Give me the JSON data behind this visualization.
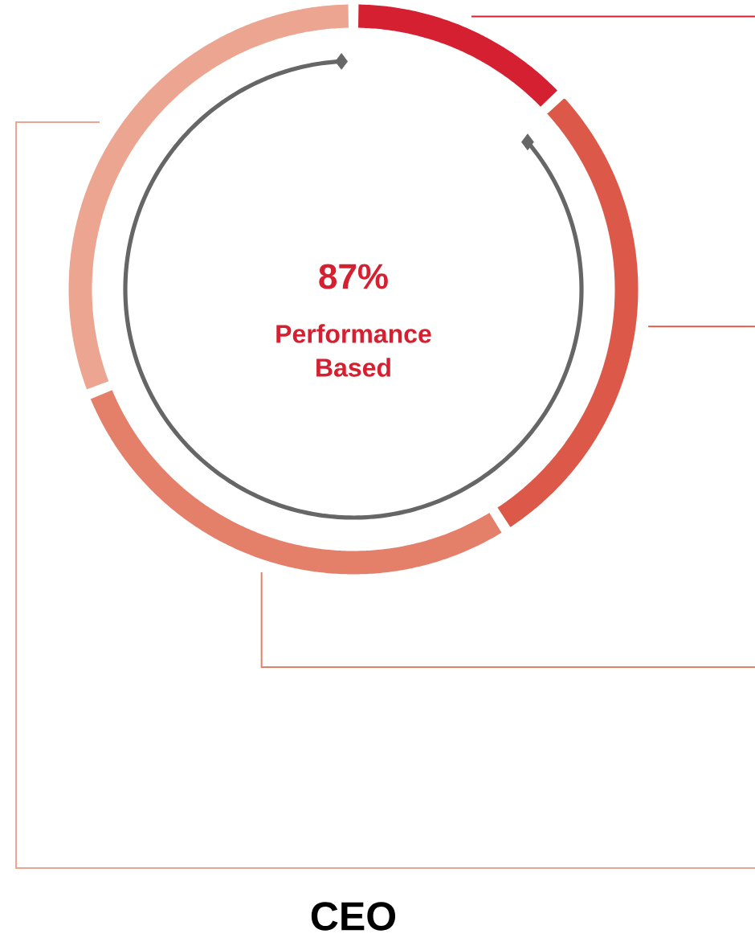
{
  "chart_data": {
    "type": "donut",
    "title": "CEO",
    "categories": [
      null,
      null,
      null,
      null
    ],
    "values": [
      13,
      28,
      28,
      31
    ],
    "colors": [
      "#d42030",
      "#dc5848",
      "#e4806a",
      "#eba590"
    ],
    "annotations": [
      "87%",
      "Performance Based"
    ]
  }
}
